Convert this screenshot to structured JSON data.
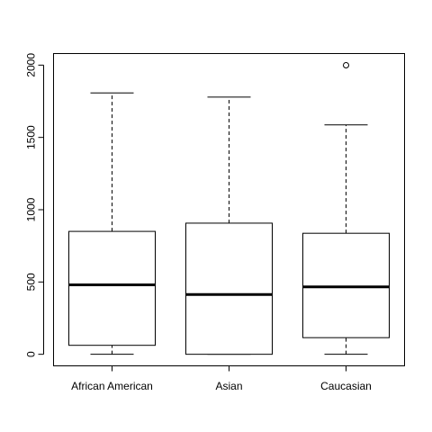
{
  "chart_data": {
    "type": "boxplot",
    "title": "",
    "xlabel": "",
    "ylabel": "",
    "categories": [
      "African American",
      "Asian",
      "Caucasian"
    ],
    "ylim": [
      -80,
      2080
    ],
    "y_ticks": [
      0,
      500,
      1000,
      1500,
      2000
    ],
    "y_tick_labels": [
      "0",
      "500",
      "1000",
      "1500",
      "2000"
    ],
    "boxes": [
      {
        "category": "African American",
        "min": 0,
        "q1": 62,
        "median": 480,
        "q3": 850,
        "max": 1808,
        "outliers": []
      },
      {
        "category": "Asian",
        "min": 0,
        "q1": 0,
        "median": 413,
        "q3": 907,
        "max": 1779,
        "outliers": []
      },
      {
        "category": "Caucasian",
        "min": 0,
        "q1": 115,
        "median": 466,
        "q3": 837,
        "max": 1587,
        "outliers": [
          1999
        ]
      }
    ],
    "grid": false,
    "legend": "none"
  }
}
